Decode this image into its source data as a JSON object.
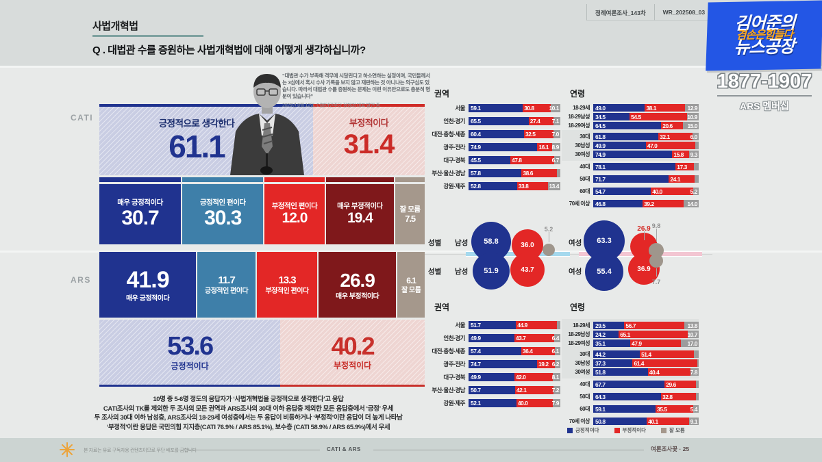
{
  "header": {
    "tag": "사법개혁법",
    "question": "Q . 대법관 수를 증원하는 사법개혁법에 대해 어떻게 생각하십니까?",
    "survey_label": "정례여론조사_143차",
    "wave_label": "WR_202508_03"
  },
  "branding": {
    "logo_line1": "김어준의",
    "logo_line2": "겸손은힘들다",
    "logo_line3": "뉴스공장",
    "phone": "1877-1907",
    "membership": "ARS 멤버십",
    "blue": "#2356e5",
    "orange": "#ffaa1e"
  },
  "quote": {
    "text": "“대법관 수가 부족해 격무에 시달린다고 하소연하는 실정이며, 국민들께서는 3심에서 혹시 수사 기록을 보지 않고 재판하는 것 아니냐는 의구심도 있습니다. 따라서 대법관 수를 증원하는 문제는 이런 이유만으로도 충분히 명분이 있습니다”",
    "attribution": "2025년 8월 12일, 더불어민주당 정청래 대표 발언 중"
  },
  "sections": {
    "cati": "CATI",
    "ars": "ARS"
  },
  "legend": {
    "items": [
      {
        "label": "긍정적이다",
        "color": "#20338f"
      },
      {
        "label": "부정적이다",
        "color": "#e32726"
      },
      {
        "label": "잘 모름",
        "color": "#a5988c"
      }
    ]
  },
  "summary": {
    "lines": [
      "10명 중 5-6명 정도의 응답자가 ‘사법개혁법을 긍정적으로 생각한다’고 응답",
      "CATI조사의 TK를 제외한 두 조사의 모든 권역과 ARS조사의 30대 이하 응답층 제외한 모든 응답층에서 ‘긍정’ 우세",
      "두 조사의 30대 이하 남성층, ARS조사의 18-29세 여성층에서는 두 응답이 비등하거나 ‘부정적’이란 응답이 더 높게 나타남",
      "‘부정적’이란 응답은 국민의힘 지지층(CATI 76.9% / ARS 85.1%), 보수층 (CATI 58.9% / ARS 65.9%)에서 우세"
    ]
  },
  "footer": {
    "disclaimer": "본 자료는 유료 구독자용 컨텐츠이므로 무단 배포를 금합니다",
    "method": "CATI & ARS",
    "source": "여론조사꽃 · 25"
  },
  "chart_data": [
    {
      "id": "cati_overall",
      "type": "bar",
      "survey": "CATI",
      "unit": "%",
      "series": [
        {
          "name": "긍정적으로 생각한다",
          "value": "61.1",
          "color": "#20338f"
        },
        {
          "name": "부정적이다",
          "value": "31.4",
          "color": "#cb2b27"
        }
      ]
    },
    {
      "id": "cati_detail",
      "type": "bar",
      "survey": "CATI",
      "stacked": true,
      "unit": "%",
      "segments": [
        {
          "label": "매우 긍정적이다",
          "value": "30.7",
          "color": "#20338f"
        },
        {
          "label": "긍정적인 편이다",
          "value": "30.3",
          "color": "#3e7fa9"
        },
        {
          "label": "부정적인 편이다",
          "value": "12.0",
          "color": "#e32726"
        },
        {
          "label": "매우 부정적이다",
          "value": "19.4",
          "color": "#7f181b"
        },
        {
          "label": "잘 모름",
          "value": "7.5",
          "color": "#a5988c"
        }
      ]
    },
    {
      "id": "ars_detail",
      "type": "bar",
      "survey": "ARS",
      "stacked": true,
      "unit": "%",
      "segments": [
        {
          "label": "매우 긍정적이다",
          "value": "41.9",
          "color": "#20338f"
        },
        {
          "label": "긍정적인 편이다",
          "value": "11.7",
          "color": "#3e7fa9"
        },
        {
          "label": "부정적인 편이다",
          "value": "13.3",
          "color": "#e32726"
        },
        {
          "label": "매우 부정적이다",
          "value": "26.9",
          "color": "#7f181b"
        },
        {
          "label": "잘 모름",
          "value": "6.1",
          "color": "#a5988c"
        }
      ]
    },
    {
      "id": "ars_overall",
      "type": "bar",
      "survey": "ARS",
      "unit": "%",
      "series": [
        {
          "name": "긍정적이다",
          "value": "53.6",
          "color": "#20338f"
        },
        {
          "name": "부정적이다",
          "value": "40.2",
          "color": "#c8302b"
        }
      ]
    },
    {
      "id": "cati_region",
      "type": "bar",
      "survey": "CATI",
      "title": "권역",
      "stacked": true,
      "unit": "%",
      "rows": [
        {
          "label": "서울",
          "pos": "59.1",
          "neg": "30.8",
          "dk": "10.1"
        },
        {
          "label": "인천·경기",
          "pos": "65.5",
          "neg": "27.4",
          "dk": "7.1"
        },
        {
          "label": "대전·충청·세종",
          "pos": "60.4",
          "neg": "32.5",
          "dk": "7.0"
        },
        {
          "label": "광주·전라",
          "pos": "74.9",
          "neg": "16.1",
          "dk": "8.9"
        },
        {
          "label": "대구·경북",
          "pos": "45.5",
          "neg": "47.8",
          "dk": "6.7"
        },
        {
          "label": "부산·울산·경남",
          "pos": "57.8",
          "neg": "38.6",
          "dk": null
        },
        {
          "label": "강원·제주",
          "pos": "52.8",
          "neg": "33.8",
          "dk": "13.4"
        }
      ]
    },
    {
      "id": "cati_age",
      "type": "bar",
      "survey": "CATI",
      "title": "연령",
      "stacked": true,
      "unit": "%",
      "highlight_rows": [
        [
          3,
          5
        ]
      ],
      "rows": [
        {
          "label": "18-29세",
          "pos": "49.0",
          "neg": "38.1",
          "dk": "12.9"
        },
        {
          "label": "18-29남성",
          "pos": "34.5",
          "neg": "54.5",
          "dk": "10.9"
        },
        {
          "label": "18-29여성",
          "pos": "64.5",
          "neg": "20.6",
          "dk": "15.0"
        },
        {
          "label": "30대",
          "pos": "61.8",
          "neg": "32.1",
          "dk": "6.0"
        },
        {
          "label": "30남성",
          "pos": "49.9",
          "neg": "47.0",
          "dk": null
        },
        {
          "label": "30여성",
          "pos": "74.9",
          "neg": "15.8",
          "dk": "9.3"
        },
        {
          "label": "40대",
          "pos": "78.1",
          "neg": "17.3",
          "dk": null
        },
        {
          "label": "50대",
          "pos": "71.7",
          "neg": "24.1",
          "dk": null
        },
        {
          "label": "60대",
          "pos": "54.7",
          "neg": "40.0",
          "dk": "5.2"
        },
        {
          "label": "70세 이상",
          "pos": "46.8",
          "neg": "39.2",
          "dk": "14.0"
        }
      ]
    },
    {
      "id": "gender",
      "type": "bubble",
      "title": "성별",
      "unit": "%",
      "male_label": "남성",
      "female_label": "여성",
      "rows": [
        {
          "survey": "CATI",
          "male": {
            "pos": "58.8",
            "neg": "36.0",
            "dk": "5.2"
          },
          "female": {
            "pos": "63.3",
            "neg": "26.9",
            "dk": "9.8"
          }
        },
        {
          "survey": "ARS",
          "male": {
            "pos": "51.9",
            "neg": "43.7",
            "dk": null
          },
          "female": {
            "pos": "55.4",
            "neg": "36.9",
            "dk": "7.7"
          }
        }
      ]
    },
    {
      "id": "ars_region",
      "type": "bar",
      "survey": "ARS",
      "title": "권역",
      "stacked": true,
      "unit": "%",
      "rows": [
        {
          "label": "서울",
          "pos": "51.7",
          "neg": "44.9",
          "dk": null
        },
        {
          "label": "인천·경기",
          "pos": "49.9",
          "neg": "43.7",
          "dk": "6.4"
        },
        {
          "label": "대전·충청·세종",
          "pos": "57.4",
          "neg": "36.4",
          "dk": "6.1"
        },
        {
          "label": "광주·전라",
          "pos": "74.7",
          "neg": "19.2",
          "dk": "6.2"
        },
        {
          "label": "대구·경북",
          "pos": "49.9",
          "neg": "42.0",
          "dk": "8.1"
        },
        {
          "label": "부산·울산·경남",
          "pos": "50.7",
          "neg": "42.1",
          "dk": "7.2"
        },
        {
          "label": "강원·제주",
          "pos": "52.1",
          "neg": "40.0",
          "dk": "7.9"
        }
      ]
    },
    {
      "id": "ars_age",
      "type": "bar",
      "survey": "ARS",
      "title": "연령",
      "stacked": true,
      "unit": "%",
      "highlight_rows": [
        [
          0,
          2
        ],
        [
          3,
          5
        ]
      ],
      "rows": [
        {
          "label": "18-29세",
          "pos": "29.5",
          "neg": "56.7",
          "dk": "13.8"
        },
        {
          "label": "18-29남성",
          "pos": "24.2",
          "neg": "65.1",
          "dk": "10.7"
        },
        {
          "label": "18-29여성",
          "pos": "35.1",
          "neg": "47.9",
          "dk": "17.0"
        },
        {
          "label": "30대",
          "pos": "44.2",
          "neg": "51.4",
          "dk": null
        },
        {
          "label": "30남성",
          "pos": "37.3",
          "neg": "61.4",
          "dk": null
        },
        {
          "label": "30여성",
          "pos": "51.8",
          "neg": "40.4",
          "dk": "7.8"
        },
        {
          "label": "40대",
          "pos": "67.7",
          "neg": "29.6",
          "dk": null
        },
        {
          "label": "50대",
          "pos": "64.3",
          "neg": "32.8",
          "dk": null
        },
        {
          "label": "60대",
          "pos": "59.1",
          "neg": "35.5",
          "dk": "5.4"
        },
        {
          "label": "70세 이상",
          "pos": "50.8",
          "neg": "40.1",
          "dk": "9.1"
        }
      ]
    }
  ]
}
